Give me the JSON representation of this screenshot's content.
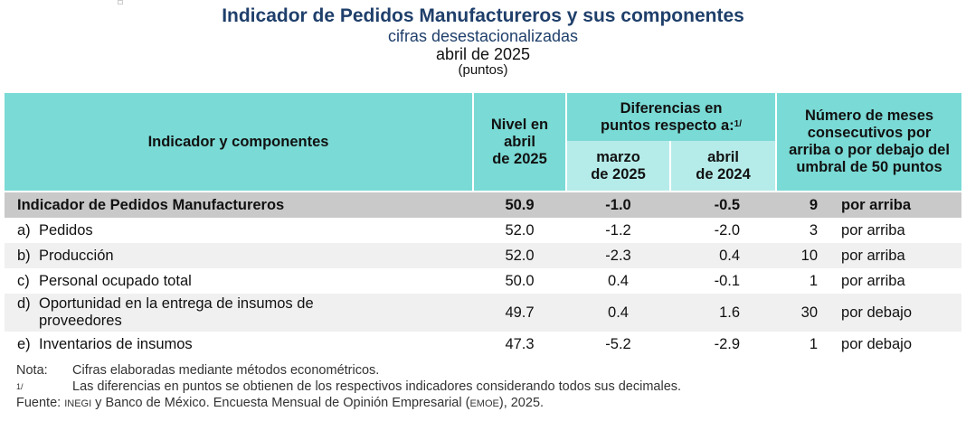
{
  "title": "Indicador de Pedidos Manufactureros y sus componentes",
  "subtitle": "cifras desestacionalizadas",
  "period": "abril de 2025",
  "units": "(puntos)",
  "table": {
    "head_indicator": "Indicador y componentes",
    "head_level_l1": "Nivel en",
    "head_level_l2": "abril",
    "head_level_l3": "de 2025",
    "head_diff_l1": "Diferencias en",
    "head_diff_l2": "puntos respecto a:",
    "head_diff_sup": "1/",
    "head_mar_l1": "marzo",
    "head_mar_l2": "de 2025",
    "head_abr_l1": "abril",
    "head_abr_l2": "de 2024",
    "head_months_l1": "Número de meses",
    "head_months_l2": "consecutivos por",
    "head_months_l3": "arriba o por debajo del",
    "head_months_l4": "umbral de 50 puntos",
    "main_row": {
      "name": "Indicador de Pedidos Manufactureros",
      "level": "50.9",
      "diff_mar": "-1.0",
      "diff_abr": "-0.5",
      "months": "9",
      "direction": "por arriba"
    },
    "rows": [
      {
        "letter": "a)",
        "name": "Pedidos",
        "name2": "",
        "level": "52.0",
        "diff_mar": "-1.2",
        "diff_abr": "-2.0",
        "months": "3",
        "direction": "por arriba"
      },
      {
        "letter": "b)",
        "name": "Producción",
        "name2": "",
        "level": "52.0",
        "diff_mar": "-2.3",
        "diff_abr": "0.4",
        "months": "10",
        "direction": "por arriba"
      },
      {
        "letter": "c)",
        "name": "Personal ocupado total",
        "name2": "",
        "level": "50.0",
        "diff_mar": "0.4",
        "diff_abr": "-0.1",
        "months": "1",
        "direction": "por arriba"
      },
      {
        "letter": "d)",
        "name": "Oportunidad en la entrega de insumos de",
        "name2": "proveedores",
        "level": "49.7",
        "diff_mar": "0.4",
        "diff_abr": "1.6",
        "months": "30",
        "direction": "por debajo"
      },
      {
        "letter": "e)",
        "name": "Inventarios de insumos",
        "name2": "",
        "level": "47.3",
        "diff_mar": "-5.2",
        "diff_abr": "-2.9",
        "months": "1",
        "direction": "por debajo"
      }
    ]
  },
  "notes": {
    "nota_label": "Nota:",
    "nota_text": "Cifras elaboradas mediante métodos econométricos.",
    "foot_sup": "1/",
    "foot_text": "Las diferencias en puntos se obtienen de los respectivos indicadores considerando todos sus decimales.",
    "source_label": "Fuente:",
    "source_inegi": "INEGI",
    "source_mid": " y Banco de México. Encuesta Mensual de Opinión Empresarial (",
    "source_emoe": "EMOE",
    "source_end": "), 2025."
  },
  "colors": {
    "title": "#1f3f6b",
    "header_teal": "#7adad5",
    "header_light_teal": "#b5ecea",
    "main_row_gray": "#c9c9c9",
    "alt_row_gray": "#f0f0f0"
  }
}
